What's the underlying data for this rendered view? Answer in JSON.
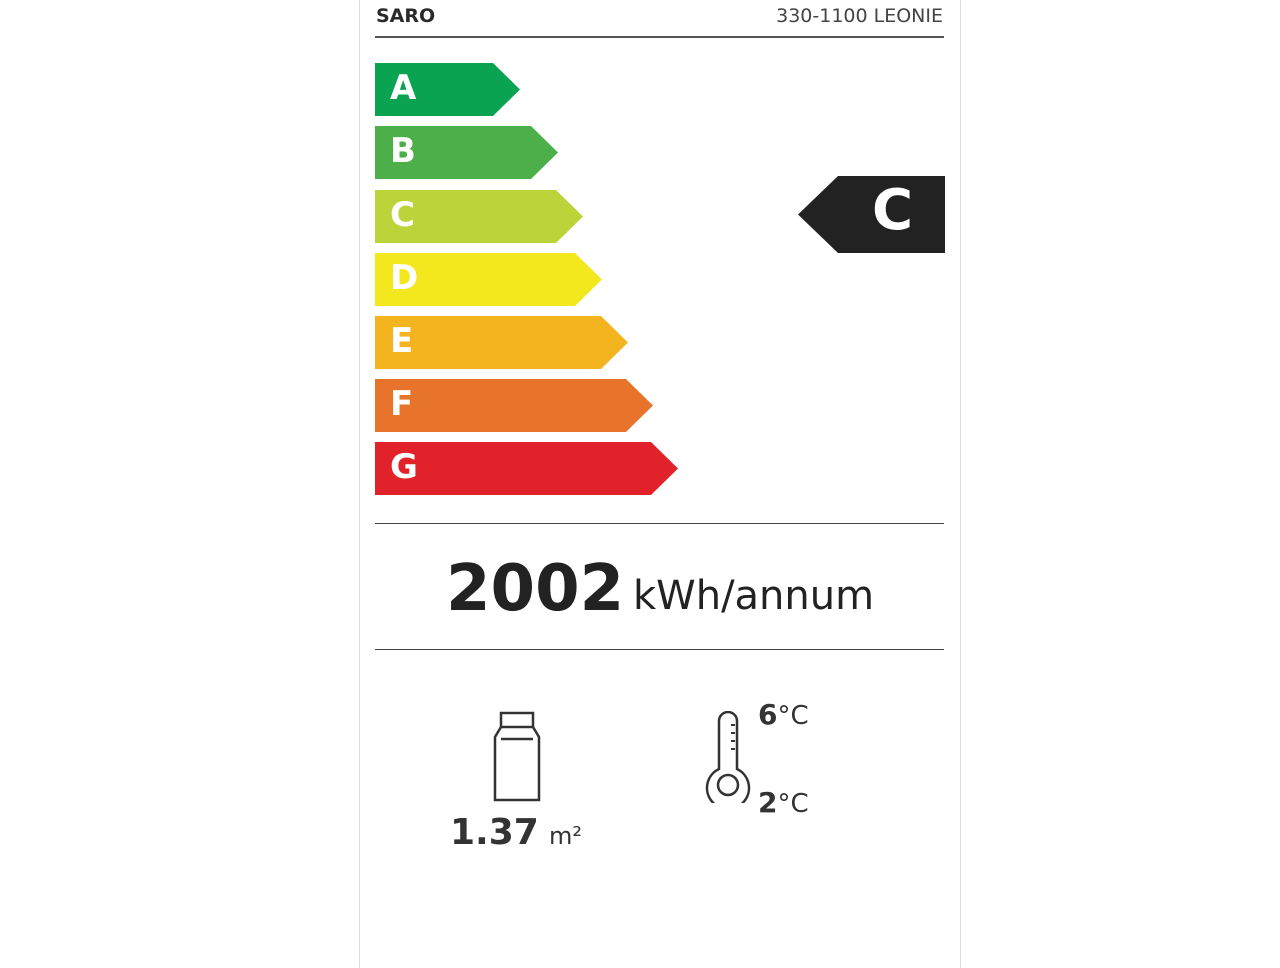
{
  "header": {
    "brand": "SARO",
    "model": "330-1100 LEONIE"
  },
  "scale": [
    {
      "letter": "A",
      "color": "#0aa352"
    },
    {
      "letter": "B",
      "color": "#4caf4a"
    },
    {
      "letter": "C",
      "color": "#bdd33a"
    },
    {
      "letter": "D",
      "color": "#f3e81e"
    },
    {
      "letter": "E",
      "color": "#f4b41f"
    },
    {
      "letter": "F",
      "color": "#e8732a"
    },
    {
      "letter": "G",
      "color": "#e2222a"
    }
  ],
  "rating": {
    "class": "C",
    "color": "#222222"
  },
  "energy": {
    "value": "2002",
    "unit": "kWh/annum"
  },
  "display_area": {
    "value": "1.37",
    "unit": "m²",
    "icon": "cabinet-icon"
  },
  "temperature": {
    "max": "6",
    "min": "2",
    "unit": "°C",
    "icon": "thermometer-icon"
  }
}
